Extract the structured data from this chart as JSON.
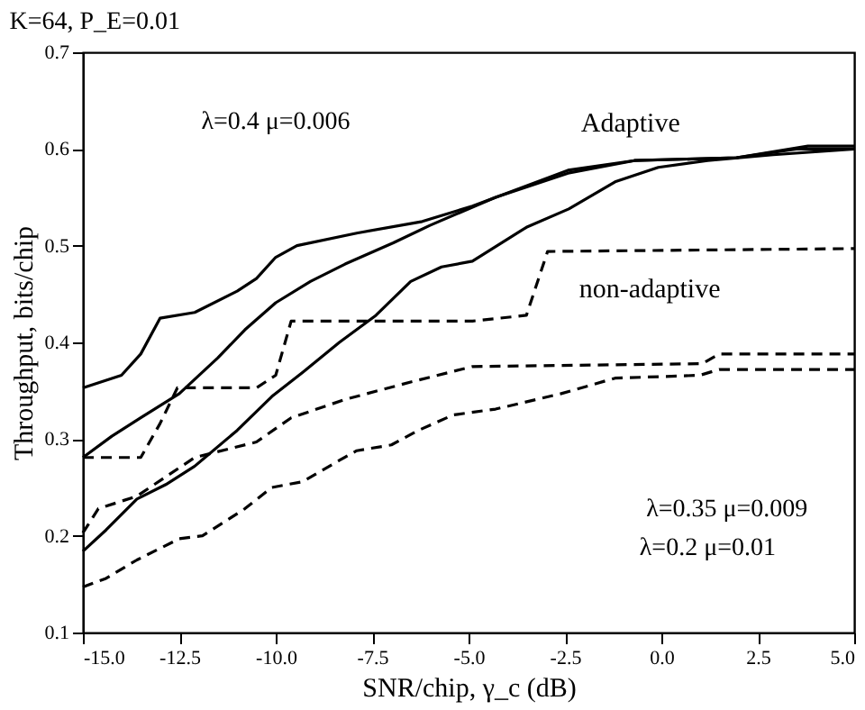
{
  "chart_data": {
    "type": "line",
    "title": "K=64, P_E=0.01",
    "xlabel": "SNR/chip, γ_c (dB)",
    "ylabel": "Throughput, bits/chip",
    "xlim": [
      -15,
      5
    ],
    "ylim": [
      0.1,
      0.7
    ],
    "xticks": [
      {
        "value": -15,
        "label": "-15.0"
      },
      {
        "value": -12.5,
        "label": "-12.5"
      },
      {
        "value": -10,
        "label": "-10.0"
      },
      {
        "value": -7.5,
        "label": "-7.5"
      },
      {
        "value": -5,
        "label": "-5.0"
      },
      {
        "value": -2.5,
        "label": "-2.5"
      },
      {
        "value": 0,
        "label": "0.0"
      },
      {
        "value": 2.5,
        "label": "2.5"
      },
      {
        "value": 5,
        "label": "5.0"
      }
    ],
    "yticks": [
      0.1,
      0.2,
      0.3,
      0.4,
      0.5,
      0.6,
      0.7
    ],
    "grid": false,
    "marker": "none",
    "annotations": [
      "Adaptive",
      "non-adaptive",
      "λ=0.4 μ=0.006",
      "λ=0.35 μ=0.009",
      "λ=0.2 μ=0.01"
    ],
    "series": [
      {
        "color": "#000000",
        "line_style": "solid",
        "x": [
          -15,
          -14.0,
          -13.5,
          -13.0,
          -12.1,
          -11.0,
          -10.5,
          -10.0,
          -9.45,
          -7.9,
          -6.2,
          -4.9,
          -2.42,
          -0.7,
          1.95,
          3.8,
          5
        ],
        "values": [
          0.353,
          0.366,
          0.388,
          0.425,
          0.431,
          0.453,
          0.466,
          0.488,
          0.5,
          0.513,
          0.525,
          0.541,
          0.578,
          0.588,
          0.591,
          0.603,
          0.603
        ]
      },
      {
        "color": "#000000",
        "line_style": "solid",
        "x": [
          -15,
          -14.25,
          -13.5,
          -12.5,
          -11.5,
          -10.8,
          -10.0,
          -9.1,
          -8.2,
          -6.95,
          -6.0,
          -4.3,
          -2.42,
          -0.7,
          1.95,
          3.5,
          5
        ],
        "values": [
          0.281,
          0.303,
          0.322,
          0.347,
          0.384,
          0.413,
          0.441,
          0.463,
          0.481,
          0.503,
          0.521,
          0.55,
          0.575,
          0.588,
          0.591,
          0.6,
          0.6
        ]
      },
      {
        "color": "#000000",
        "line_style": "solid",
        "x": [
          -15,
          -14.4,
          -13.6,
          -12.85,
          -12.1,
          -11.0,
          -10.1,
          -9.3,
          -8.35,
          -7.4,
          -6.5,
          -5.7,
          -4.9,
          -3.5,
          -2.4,
          -1.2,
          -0.08,
          1.2,
          2.9,
          5
        ],
        "values": [
          0.184,
          0.206,
          0.238,
          0.253,
          0.272,
          0.309,
          0.344,
          0.369,
          0.4,
          0.428,
          0.463,
          0.478,
          0.484,
          0.519,
          0.538,
          0.566,
          0.581,
          0.588,
          0.594,
          0.6
        ]
      },
      {
        "color": "#000000",
        "line_style": "dashed",
        "x": [
          -15,
          -13.5,
          -13.0,
          -12.55,
          -10.5,
          -10.0,
          -9.6,
          -4.9,
          -3.5,
          -2.95,
          5
        ],
        "values": [
          0.281,
          0.281,
          0.316,
          0.353,
          0.353,
          0.366,
          0.422,
          0.422,
          0.428,
          0.494,
          0.497
        ]
      },
      {
        "color": "#000000",
        "line_style": "dashed",
        "x": [
          -15,
          -14.6,
          -13.6,
          -12.1,
          -10.5,
          -9.6,
          -8.2,
          -6.5,
          -4.9,
          1.06,
          1.5,
          5
        ],
        "values": [
          0.203,
          0.228,
          0.241,
          0.281,
          0.297,
          0.322,
          0.341,
          0.359,
          0.375,
          0.378,
          0.388,
          0.388
        ]
      },
      {
        "color": "#000000",
        "line_style": "dashed",
        "x": [
          -15,
          -14.4,
          -13.6,
          -12.5,
          -11.9,
          -10.8,
          -10.1,
          -9.3,
          -8.35,
          -7.9,
          -7.0,
          -6.3,
          -5.4,
          -4.3,
          -2.6,
          -1.2,
          1.0,
          1.5,
          5
        ],
        "values": [
          0.147,
          0.156,
          0.175,
          0.197,
          0.2,
          0.228,
          0.25,
          0.256,
          0.278,
          0.288,
          0.294,
          0.309,
          0.325,
          0.331,
          0.347,
          0.363,
          0.366,
          0.372,
          0.372
        ]
      }
    ]
  }
}
